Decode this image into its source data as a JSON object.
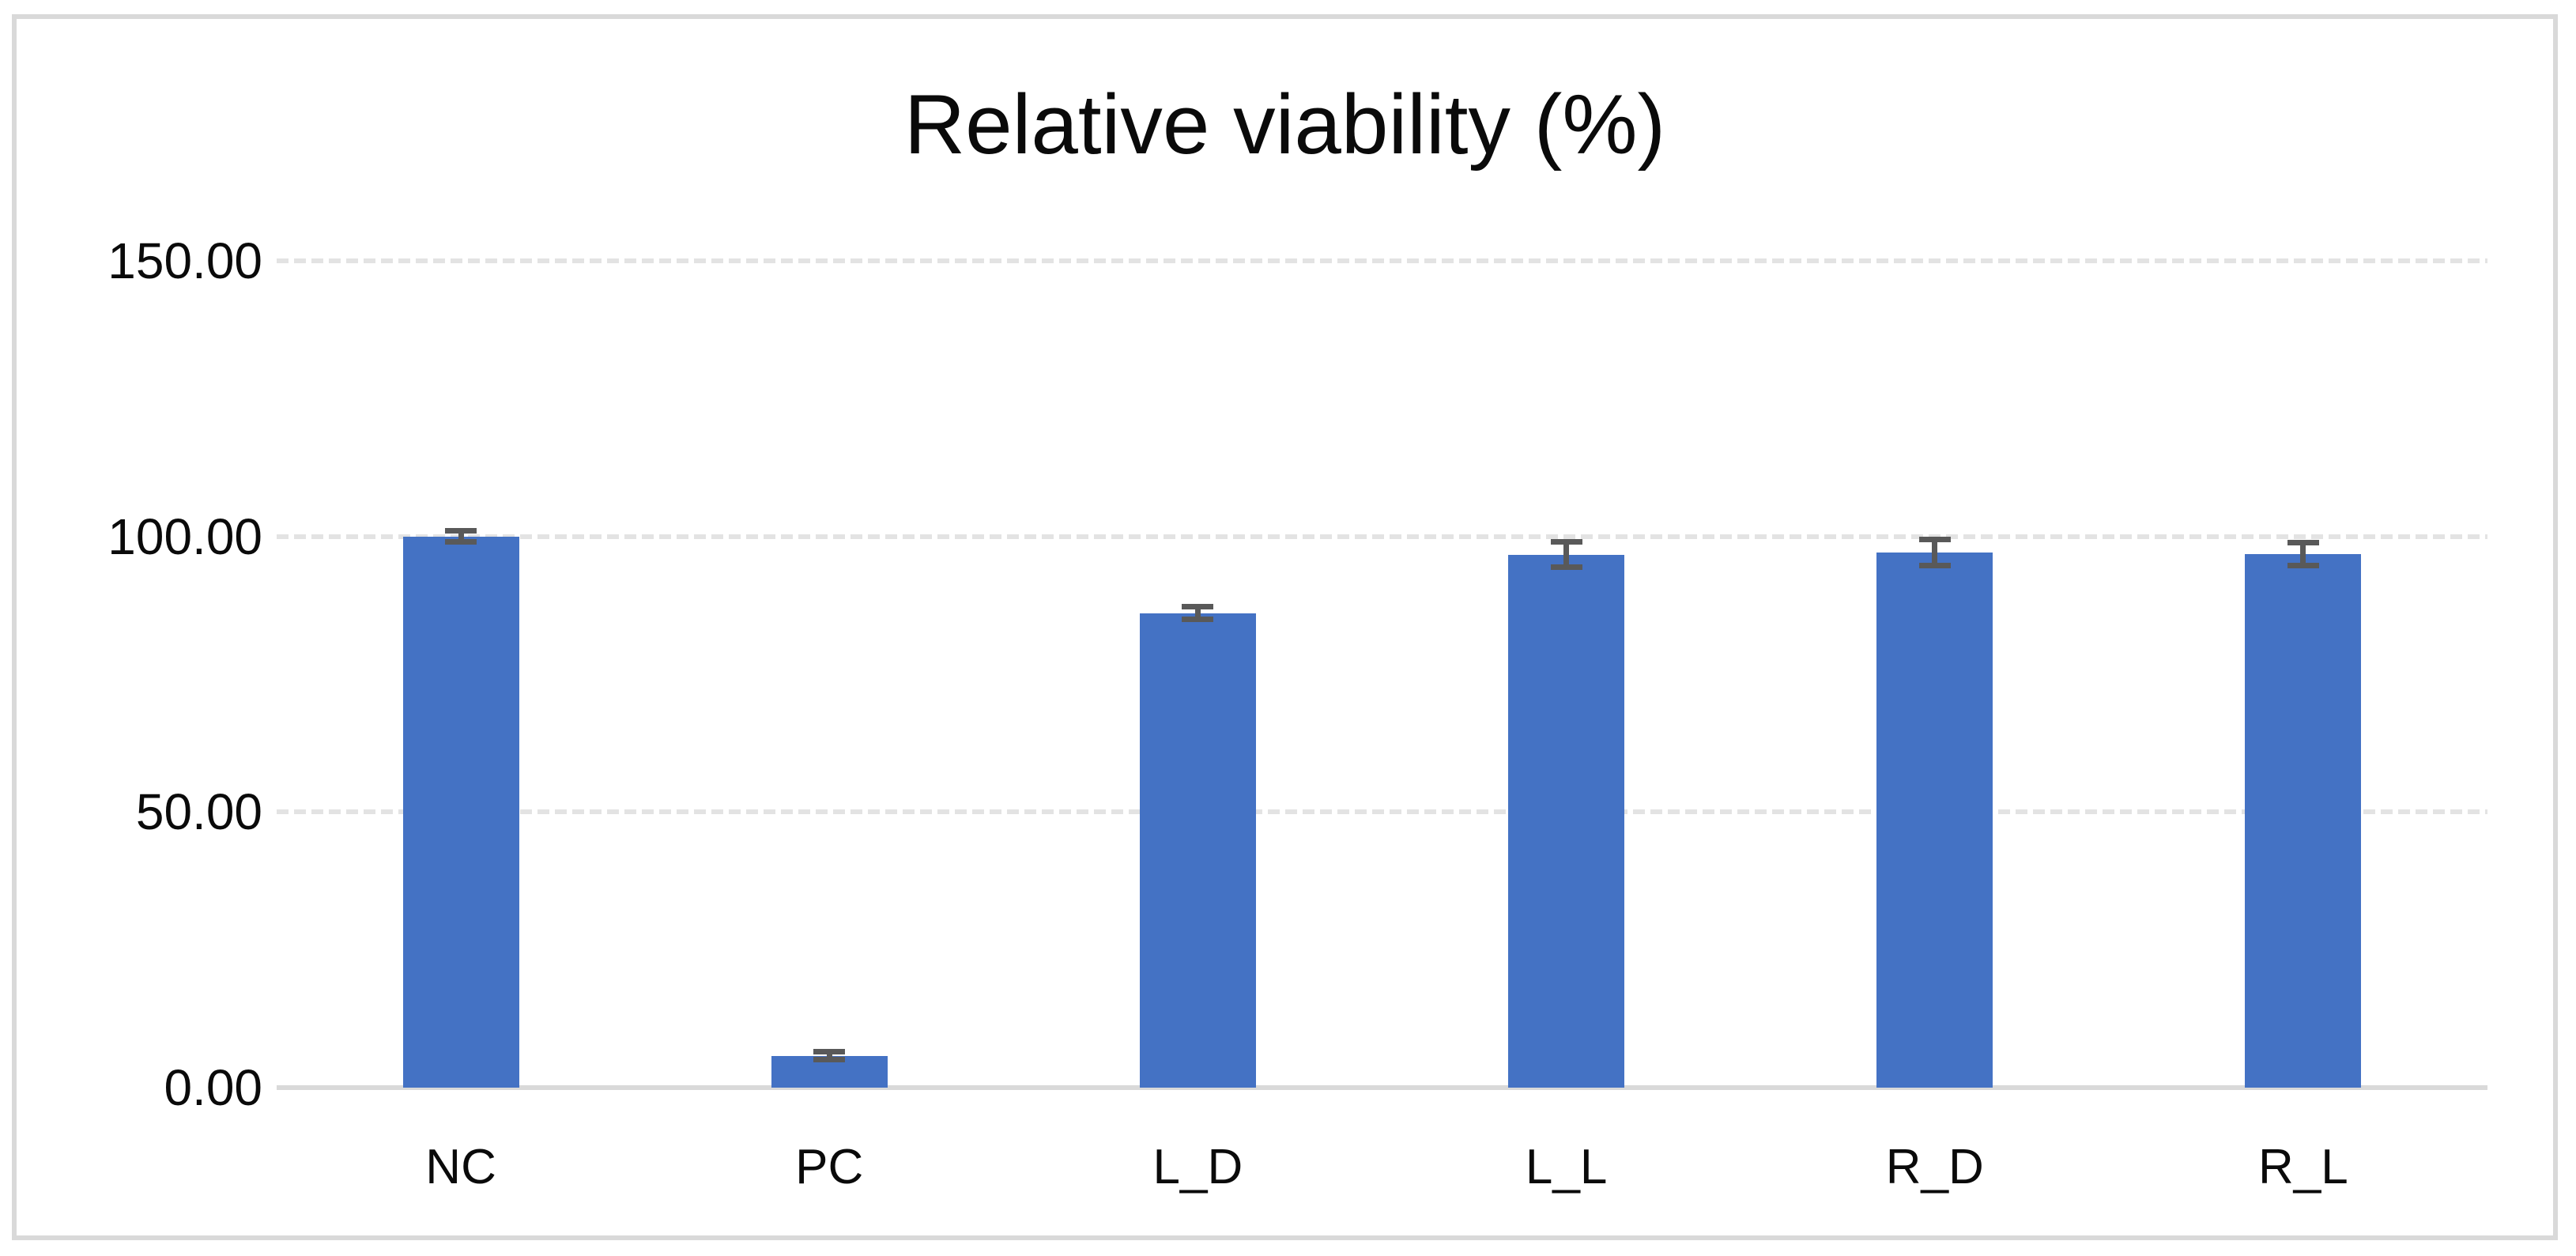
{
  "chart": {
    "title": "Relative viability (%)",
    "y_axis": {
      "tick_labels": [
        "150.00",
        "100.00",
        "50.00",
        "0.00"
      ],
      "tick_values": [
        150,
        100,
        50,
        0
      ]
    },
    "colors": {
      "bar": "#4472C4",
      "error_bar": "#595959",
      "gridline": "#E3E3E3",
      "axis_line": "#D9D9D9",
      "canvas_border": "#D9D9D9",
      "text": "#0a0a0a",
      "background": "#ffffff"
    }
  },
  "chart_data": {
    "type": "bar",
    "title": "Relative viability (%)",
    "categories": [
      "NC",
      "PC",
      "L_D",
      "L_L",
      "R_D",
      "R_L"
    ],
    "values": [
      100.0,
      5.8,
      86.1,
      96.7,
      97.1,
      96.8
    ],
    "error_bars": [
      1.5,
      1.2,
      1.7,
      2.8,
      2.9,
      2.6
    ],
    "xlabel": "",
    "ylabel": "",
    "ylim": [
      0,
      150
    ],
    "ytick_step": 50,
    "grid": "horizontal-dashed",
    "legend": "none",
    "bar_color": "#4472C4",
    "error_bar_color": "#595959"
  }
}
